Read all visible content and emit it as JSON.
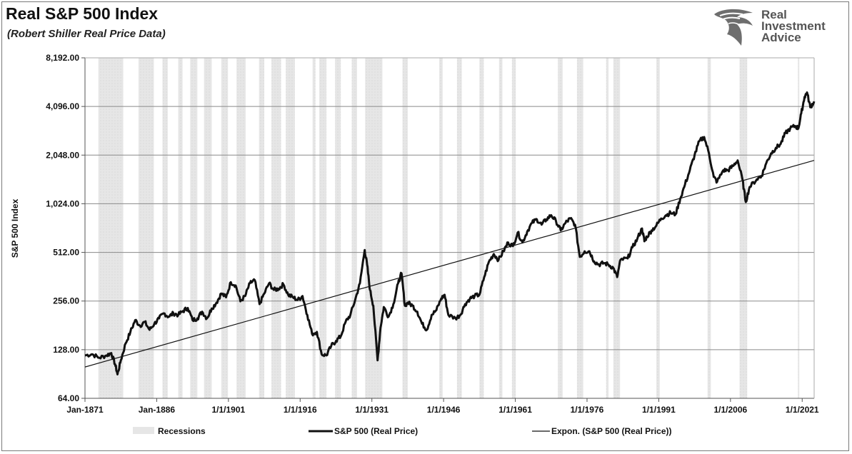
{
  "header": {
    "title": "Real S&P 500 Index",
    "subtitle": "(Robert Shiller Real Price Data)"
  },
  "logo": {
    "line1": "Real",
    "line2": "Investment",
    "line3": "Advice",
    "icon": "eagle-head-icon"
  },
  "colors": {
    "price_line": "#111111",
    "trend_line": "#111111",
    "recession_fill": "#e6e6e6",
    "grid": "#8a8a8a"
  },
  "chart_data": {
    "type": "line",
    "ylabel": "S&P 500 Index",
    "xlabel": "",
    "yscale": "log2",
    "ylim": [
      64,
      8192
    ],
    "xlim": [
      1871,
      2023.5
    ],
    "yticks": [
      {
        "value": 64,
        "label": "64.00"
      },
      {
        "value": 128,
        "label": "128.00"
      },
      {
        "value": 256,
        "label": "256.00"
      },
      {
        "value": 512,
        "label": "512.00"
      },
      {
        "value": 1024,
        "label": "1,024.00"
      },
      {
        "value": 2048,
        "label": "2,048.00"
      },
      {
        "value": 4096,
        "label": "4,096.00"
      },
      {
        "value": 8192,
        "label": "8,192.00"
      }
    ],
    "xticks": [
      {
        "value": 1871,
        "label": "Jan-1871"
      },
      {
        "value": 1886,
        "label": "Jan-1886"
      },
      {
        "value": 1901,
        "label": "1/1/1901"
      },
      {
        "value": 1916,
        "label": "1/1/1916"
      },
      {
        "value": 1931,
        "label": "1/1/1931"
      },
      {
        "value": 1946,
        "label": "1/1/1946"
      },
      {
        "value": 1961,
        "label": "1/1/1961"
      },
      {
        "value": 1976,
        "label": "1/1/1976"
      },
      {
        "value": 1991,
        "label": "1/1/1991"
      },
      {
        "value": 2006,
        "label": "1/1/2006"
      },
      {
        "value": 2021,
        "label": "1/1/2021"
      }
    ],
    "grid": "horizontal",
    "legend_position": "bottom",
    "legend": [
      {
        "key": "recessions",
        "label": "Recessions"
      },
      {
        "key": "price",
        "label": "S&P 500 (Real Price)"
      },
      {
        "key": "trend",
        "label": "Expon. (S&P 500 (Real Price))"
      }
    ],
    "recessions": [
      [
        1873.8,
        1879.0
      ],
      [
        1882.2,
        1885.4
      ],
      [
        1887.2,
        1888.3
      ],
      [
        1890.5,
        1891.4
      ],
      [
        1893.0,
        1894.5
      ],
      [
        1895.9,
        1897.5
      ],
      [
        1899.5,
        1900.9
      ],
      [
        1902.7,
        1904.6
      ],
      [
        1907.4,
        1908.5
      ],
      [
        1910.0,
        1912.0
      ],
      [
        1913.0,
        1914.9
      ],
      [
        1918.6,
        1919.2
      ],
      [
        1920.0,
        1921.5
      ],
      [
        1923.3,
        1924.5
      ],
      [
        1926.8,
        1927.9
      ],
      [
        1929.6,
        1933.2
      ],
      [
        1937.4,
        1938.5
      ],
      [
        1945.1,
        1945.8
      ],
      [
        1948.8,
        1949.8
      ],
      [
        1953.5,
        1954.4
      ],
      [
        1957.6,
        1958.3
      ],
      [
        1960.3,
        1961.1
      ],
      [
        1969.9,
        1970.9
      ],
      [
        1973.9,
        1975.2
      ],
      [
        1980.0,
        1980.5
      ],
      [
        1981.5,
        1982.9
      ],
      [
        1990.5,
        1991.2
      ],
      [
        2001.2,
        2001.9
      ],
      [
        2007.9,
        2009.5
      ],
      [
        2020.1,
        2020.4
      ]
    ],
    "series": [
      {
        "name": "S&P 500 (Real Price)",
        "points": [
          [
            1871.0,
            118
          ],
          [
            1872.5,
            120
          ],
          [
            1874.0,
            114
          ],
          [
            1875.5,
            118
          ],
          [
            1876.5,
            122
          ],
          [
            1877.3,
            104
          ],
          [
            1877.8,
            90
          ],
          [
            1878.5,
            110
          ],
          [
            1879.5,
            140
          ],
          [
            1880.5,
            165
          ],
          [
            1881.5,
            195
          ],
          [
            1882.5,
            180
          ],
          [
            1883.5,
            190
          ],
          [
            1884.5,
            170
          ],
          [
            1885.5,
            185
          ],
          [
            1886.5,
            200
          ],
          [
            1887.5,
            215
          ],
          [
            1888.5,
            205
          ],
          [
            1889.5,
            215
          ],
          [
            1890.5,
            210
          ],
          [
            1891.5,
            222
          ],
          [
            1892.5,
            232
          ],
          [
            1893.5,
            195
          ],
          [
            1894.5,
            200
          ],
          [
            1895.5,
            220
          ],
          [
            1896.5,
            200
          ],
          [
            1897.5,
            230
          ],
          [
            1898.5,
            250
          ],
          [
            1899.5,
            285
          ],
          [
            1900.5,
            270
          ],
          [
            1901.5,
            335
          ],
          [
            1902.5,
            320
          ],
          [
            1903.5,
            255
          ],
          [
            1904.5,
            275
          ],
          [
            1905.5,
            330
          ],
          [
            1906.5,
            345
          ],
          [
            1907.5,
            245
          ],
          [
            1908.5,
            285
          ],
          [
            1909.5,
            330
          ],
          [
            1910.5,
            300
          ],
          [
            1911.5,
            305
          ],
          [
            1912.5,
            325
          ],
          [
            1913.5,
            280
          ],
          [
            1914.5,
            270
          ],
          [
            1915.5,
            260
          ],
          [
            1916.5,
            275
          ],
          [
            1917.5,
            210
          ],
          [
            1918.5,
            160
          ],
          [
            1919.5,
            165
          ],
          [
            1920.5,
            120
          ],
          [
            1921.5,
            118
          ],
          [
            1922.5,
            135
          ],
          [
            1923.5,
            145
          ],
          [
            1924.5,
            155
          ],
          [
            1925.5,
            190
          ],
          [
            1926.5,
            210
          ],
          [
            1927.5,
            260
          ],
          [
            1928.5,
            330
          ],
          [
            1929.5,
            530
          ],
          [
            1930.0,
            430
          ],
          [
            1930.6,
            300
          ],
          [
            1931.3,
            240
          ],
          [
            1932.2,
            110
          ],
          [
            1932.8,
            175
          ],
          [
            1933.5,
            235
          ],
          [
            1934.5,
            205
          ],
          [
            1935.5,
            245
          ],
          [
            1936.5,
            330
          ],
          [
            1937.2,
            380
          ],
          [
            1937.9,
            240
          ],
          [
            1938.5,
            250
          ],
          [
            1939.5,
            240
          ],
          [
            1940.5,
            220
          ],
          [
            1941.5,
            185
          ],
          [
            1942.5,
            170
          ],
          [
            1943.5,
            210
          ],
          [
            1944.5,
            225
          ],
          [
            1945.5,
            265
          ],
          [
            1946.2,
            280
          ],
          [
            1947.0,
            210
          ],
          [
            1948.5,
            200
          ],
          [
            1949.5,
            210
          ],
          [
            1950.5,
            245
          ],
          [
            1951.5,
            265
          ],
          [
            1952.5,
            275
          ],
          [
            1953.5,
            280
          ],
          [
            1954.5,
            360
          ],
          [
            1955.5,
            450
          ],
          [
            1956.5,
            500
          ],
          [
            1957.5,
            460
          ],
          [
            1958.5,
            520
          ],
          [
            1959.5,
            590
          ],
          [
            1960.5,
            560
          ],
          [
            1961.5,
            680
          ],
          [
            1962.5,
            590
          ],
          [
            1963.5,
            690
          ],
          [
            1964.5,
            780
          ],
          [
            1965.5,
            820
          ],
          [
            1966.5,
            760
          ],
          [
            1967.5,
            820
          ],
          [
            1968.5,
            870
          ],
          [
            1969.5,
            800
          ],
          [
            1970.5,
            700
          ],
          [
            1971.5,
            780
          ],
          [
            1972.5,
            830
          ],
          [
            1973.5,
            760
          ],
          [
            1974.5,
            480
          ],
          [
            1975.5,
            520
          ],
          [
            1976.5,
            520
          ],
          [
            1977.5,
            450
          ],
          [
            1978.5,
            430
          ],
          [
            1979.5,
            440
          ],
          [
            1980.5,
            430
          ],
          [
            1981.5,
            410
          ],
          [
            1982.3,
            360
          ],
          [
            1983.0,
            460
          ],
          [
            1984.5,
            470
          ],
          [
            1985.5,
            550
          ],
          [
            1986.5,
            620
          ],
          [
            1987.5,
            720
          ],
          [
            1988.0,
            600
          ],
          [
            1988.5,
            640
          ],
          [
            1989.5,
            700
          ],
          [
            1990.5,
            750
          ],
          [
            1991.5,
            830
          ],
          [
            1992.5,
            870
          ],
          [
            1993.5,
            900
          ],
          [
            1994.5,
            880
          ],
          [
            1995.5,
            1100
          ],
          [
            1996.5,
            1350
          ],
          [
            1997.5,
            1650
          ],
          [
            1998.5,
            2050
          ],
          [
            1999.5,
            2500
          ],
          [
            2000.5,
            2650
          ],
          [
            2001.5,
            2100
          ],
          [
            2002.5,
            1500
          ],
          [
            2003.2,
            1400
          ],
          [
            2004.5,
            1650
          ],
          [
            2005.5,
            1650
          ],
          [
            2006.5,
            1750
          ],
          [
            2007.5,
            1900
          ],
          [
            2008.5,
            1450
          ],
          [
            2009.2,
            1050
          ],
          [
            2010.0,
            1300
          ],
          [
            2011.5,
            1450
          ],
          [
            2012.5,
            1520
          ],
          [
            2013.5,
            1830
          ],
          [
            2014.5,
            2100
          ],
          [
            2015.5,
            2270
          ],
          [
            2016.5,
            2400
          ],
          [
            2017.5,
            2800
          ],
          [
            2018.5,
            3000
          ],
          [
            2019.5,
            3100
          ],
          [
            2020.2,
            3000
          ],
          [
            2020.8,
            3700
          ],
          [
            2021.5,
            4700
          ],
          [
            2022.0,
            5000
          ],
          [
            2022.7,
            4050
          ],
          [
            2023.5,
            4400
          ]
        ]
      },
      {
        "name": "Expon. (S&P 500 (Real Price))",
        "type": "trendline",
        "points": [
          [
            1871.0,
            100
          ],
          [
            2023.5,
            1900
          ]
        ]
      }
    ]
  }
}
